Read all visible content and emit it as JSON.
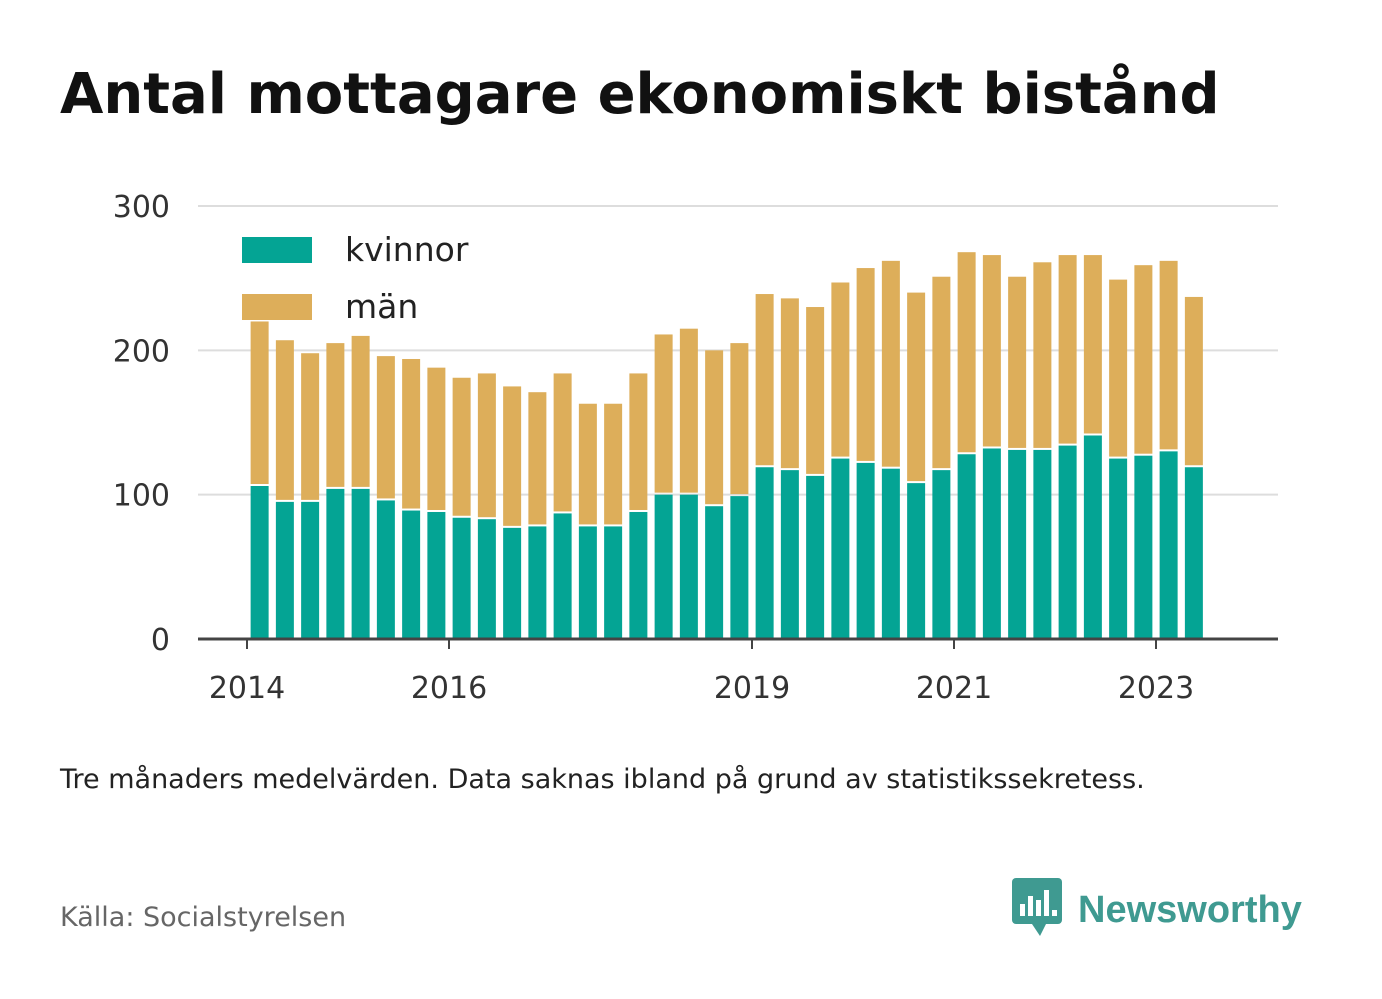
{
  "title": "Antal mottagare ekonomiskt bistånd",
  "note": "Tre månaders medelvärden. Data saknas ibland på grund av statistikssekretess.",
  "source": "Källa: Socialstyrelsen",
  "brand": {
    "name": "Newsworthy",
    "icon": "newsworthy-logo-icon",
    "color": "#3f9a91"
  },
  "colors": {
    "kvinnor": "#04a494",
    "man": "#ddae5a",
    "grid": "#dddddd",
    "axis": "#444444"
  },
  "chart_data": {
    "type": "bar",
    "stacked": true,
    "grid": true,
    "legend_position": "top-left",
    "ylim": [
      0,
      300
    ],
    "yticks": [
      0,
      100,
      200,
      300
    ],
    "ytick_labels": [
      "0",
      "100",
      "200",
      "300"
    ],
    "xtick_labels": [
      {
        "label": "2014",
        "x": 0
      },
      {
        "label": "2016",
        "x": 8
      },
      {
        "label": "2019",
        "x": 20
      },
      {
        "label": "2021",
        "x": 28
      },
      {
        "label": "2023",
        "x": 36
      }
    ],
    "x": [
      0.5,
      1.5,
      2.5,
      3.5,
      4.5,
      5.5,
      6.5,
      7.5,
      8.5,
      9.5,
      10.5,
      11.5,
      12.5,
      13.5,
      14.5,
      15.5,
      16.5,
      17.5,
      18.5,
      19.5,
      20.5,
      21.5,
      22.5,
      23.5,
      24.5,
      25.5,
      26.5,
      27.5,
      28.5,
      29.5,
      30.5,
      31.5,
      32.5,
      33.5,
      34.5,
      35.5,
      36.5,
      37.5
    ],
    "series": [
      {
        "name": "kvinnor",
        "values": [
          106,
          95,
          95,
          104,
          104,
          96,
          89,
          88,
          84,
          83,
          77,
          78,
          87,
          78,
          78,
          88,
          100,
          100,
          92,
          99,
          119,
          117,
          113,
          125,
          122,
          118,
          108,
          117,
          128,
          132,
          131,
          131,
          134,
          141,
          125,
          127,
          130,
          119
        ]
      },
      {
        "name": "män",
        "values": [
          114,
          112,
          103,
          101,
          106,
          100,
          105,
          100,
          97,
          101,
          98,
          93,
          97,
          85,
          85,
          96,
          111,
          115,
          108,
          106,
          120,
          119,
          117,
          122,
          135,
          144,
          132,
          134,
          140,
          134,
          120,
          130,
          132,
          125,
          124,
          132,
          132,
          118
        ]
      }
    ]
  }
}
